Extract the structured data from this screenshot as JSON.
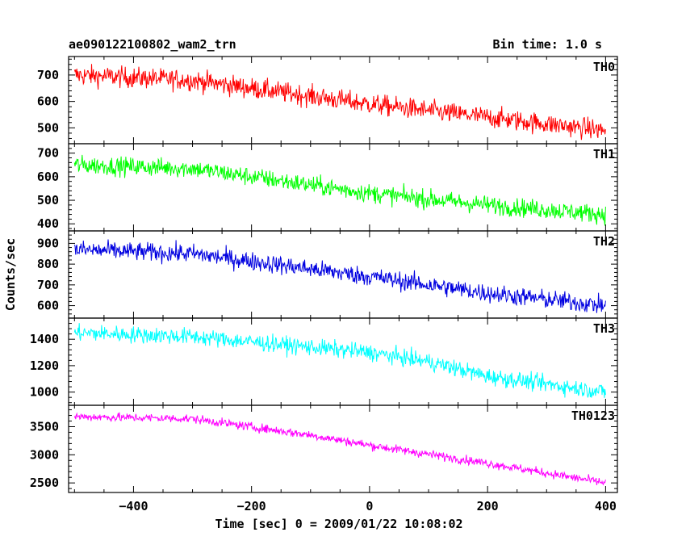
{
  "chart_data": {
    "type": "line",
    "title_left": "ae090122100802_wam2_trn",
    "title_right": "Bin time: 1.0 s",
    "xlabel": "Time [sec] 0 = 2009/01/22 10:08:02",
    "ylabel": "Counts/sec",
    "xlim": [
      -510,
      420
    ],
    "x_ticks": [
      -400,
      -200,
      0,
      200,
      400
    ],
    "x_tick_labels": [
      "−400",
      "−200",
      "0",
      "200",
      "400"
    ],
    "panels": [
      {
        "name": "TH0",
        "color": "#ff0000",
        "ylim": [
          440,
          770
        ],
        "y_ticks": [
          500,
          600,
          700
        ],
        "y_tick_labels": [
          "500",
          "600",
          "700"
        ],
        "trend": {
          "x": [
            -500,
            -300,
            0,
            200,
            400
          ],
          "y": [
            700,
            680,
            590,
            540,
            490
          ]
        },
        "noise": 28
      },
      {
        "name": "TH1",
        "color": "#00ff00",
        "ylim": [
          370,
          740
        ],
        "y_ticks": [
          400,
          500,
          600,
          700
        ],
        "y_tick_labels": [
          "400",
          "500",
          "600",
          "700"
        ],
        "trend": {
          "x": [
            -500,
            -300,
            0,
            200,
            400
          ],
          "y": [
            650,
            635,
            530,
            480,
            440
          ]
        },
        "noise": 28
      },
      {
        "name": "TH2",
        "color": "#0000e0",
        "ylim": [
          540,
          960
        ],
        "y_ticks": [
          600,
          700,
          800,
          900
        ],
        "y_tick_labels": [
          "600",
          "700",
          "800",
          "900"
        ],
        "trend": {
          "x": [
            -500,
            -300,
            0,
            200,
            400
          ],
          "y": [
            870,
            850,
            740,
            660,
            600
          ]
        },
        "noise": 32
      },
      {
        "name": "TH3",
        "color": "#00ffff",
        "ylim": [
          900,
          1560
        ],
        "y_ticks": [
          1000,
          1200,
          1400
        ],
        "y_tick_labels": [
          "1000",
          "1200",
          "1400"
        ],
        "trend": {
          "x": [
            -500,
            -300,
            0,
            100,
            200,
            400
          ],
          "y": [
            1450,
            1420,
            1300,
            1230,
            1120,
            1000
          ]
        },
        "noise": 45
      },
      {
        "name": "TH0123",
        "color": "#ff00ff",
        "ylim": [
          2330,
          3880
        ],
        "y_ticks": [
          2500,
          3000,
          3500
        ],
        "y_tick_labels": [
          "2500",
          "3000",
          "3500"
        ],
        "trend": {
          "x": [
            -500,
            -300,
            -100,
            0,
            200,
            400
          ],
          "y": [
            3680,
            3640,
            3350,
            3170,
            2850,
            2500
          ]
        },
        "noise": 55
      }
    ]
  }
}
